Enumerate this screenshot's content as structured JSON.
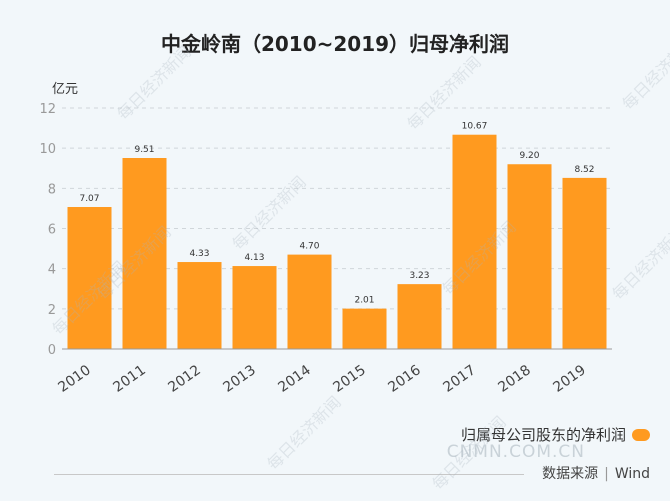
{
  "chart_data": {
    "type": "bar",
    "title": "中金岭南（2010~2019）归母净利润",
    "ylabel": "亿元",
    "xlabel": "",
    "categories": [
      "2010",
      "2011",
      "2012",
      "2013",
      "2014",
      "2015",
      "2016",
      "2017",
      "2018",
      "2019"
    ],
    "values": [
      7.07,
      9.51,
      4.33,
      4.13,
      4.7,
      2.01,
      3.23,
      10.67,
      9.2,
      8.52
    ],
    "value_labels": [
      "7.07",
      "9.51",
      "4.33",
      "4.13",
      "4.70",
      "2.01",
      "3.23",
      "10.67",
      "9.20",
      "8.52"
    ],
    "ylim": [
      0,
      12
    ],
    "yticks": [
      "0",
      "2",
      "4",
      "6",
      "8",
      "10",
      "12"
    ],
    "grid": true,
    "legend": "归属母公司股东的净利润",
    "legend_position": "bottom-right",
    "colors": {
      "bar": "#ff9a1f"
    }
  },
  "watermark": {
    "site": "CNMN.COM.CN",
    "text": "每日经济新闻"
  },
  "source": {
    "label": "数据来源",
    "value": "Wind"
  }
}
